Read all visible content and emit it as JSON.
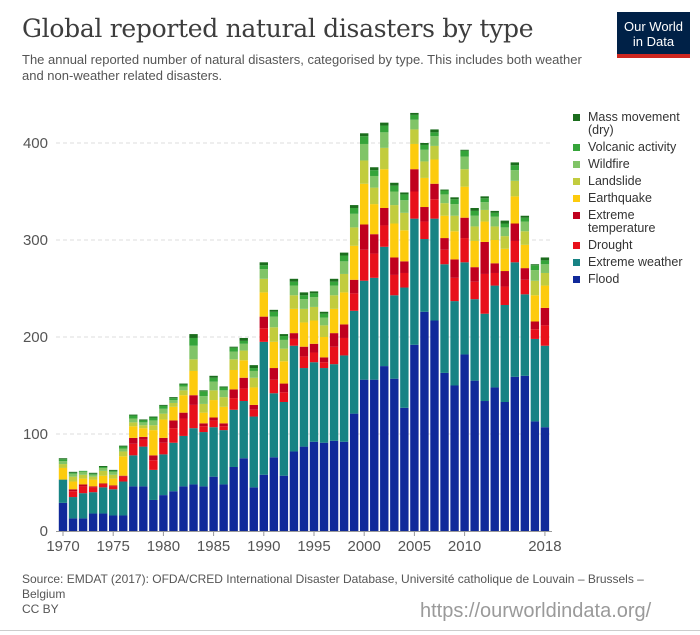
{
  "header": {
    "title": "Global reported natural disasters by type",
    "subtitle": "The annual reported number of natural disasters, categorised by type. This includes both weather and non-weather related disasters.",
    "logo_line1": "Our World",
    "logo_line2": "in Data"
  },
  "footer": {
    "source": "Source: EMDAT (2017): OFDA/CRED International Disaster Database, Université catholique de Louvain – Brussels – Belgium",
    "license": "CC BY",
    "watermark": "https://ourworldindata.org/"
  },
  "chart_data": {
    "type": "bar",
    "stacked": true,
    "title": "Global reported natural disasters by type",
    "xlabel": "",
    "ylabel": "",
    "ylim": [
      0,
      440
    ],
    "grid": true,
    "legend": "right",
    "yticks": [
      0,
      100,
      200,
      300,
      400
    ],
    "xticks": [
      "1970",
      "1975",
      "1980",
      "1985",
      "1990",
      "1995",
      "2000",
      "2005",
      "2010",
      "2018"
    ],
    "categories": [
      1970,
      1971,
      1972,
      1973,
      1974,
      1975,
      1976,
      1977,
      1978,
      1979,
      1980,
      1981,
      1982,
      1983,
      1984,
      1985,
      1986,
      1987,
      1988,
      1989,
      1990,
      1991,
      1992,
      1993,
      1994,
      1995,
      1996,
      1997,
      1998,
      1999,
      2000,
      2001,
      2002,
      2003,
      2004,
      2005,
      2006,
      2007,
      2008,
      2009,
      2010,
      2011,
      2012,
      2013,
      2014,
      2015,
      2016,
      2017,
      2018
    ],
    "series": [
      {
        "name": "Flood",
        "color": "#10299a",
        "values": [
          29,
          13,
          13,
          18,
          18,
          16,
          16,
          46,
          46,
          32,
          37,
          41,
          46,
          48,
          46,
          56,
          48,
          66,
          75,
          45,
          58,
          76,
          57,
          82,
          87,
          92,
          91,
          93,
          92,
          121,
          156,
          156,
          170,
          157,
          127,
          192,
          226,
          217,
          163,
          150,
          182,
          155,
          134,
          148,
          133,
          159,
          160,
          113,
          107
        ]
      },
      {
        "name": "Extreme weather",
        "color": "#178384",
        "values": [
          24,
          22,
          26,
          22,
          27,
          27,
          35,
          32,
          41,
          31,
          42,
          50,
          52,
          58,
          56,
          51,
          56,
          59,
          59,
          73,
          137,
          66,
          76,
          109,
          81,
          82,
          77,
          79,
          89,
          106,
          102,
          105,
          123,
          86,
          124,
          130,
          75,
          105,
          112,
          87,
          95,
          84,
          90,
          105,
          100,
          118,
          84,
          85,
          84
        ]
      },
      {
        "name": "Drought",
        "color": "#e8101a",
        "values": [
          0,
          6,
          7,
          5,
          3,
          3,
          5,
          12,
          7,
          10,
          12,
          15,
          18,
          24,
          6,
          7,
          4,
          12,
          13,
          7,
          14,
          14,
          10,
          7,
          12,
          10,
          6,
          18,
          18,
          18,
          32,
          25,
          22,
          21,
          15,
          28,
          18,
          20,
          15,
          24,
          25,
          18,
          41,
          13,
          19,
          22,
          15,
          10,
          21
        ]
      },
      {
        "name": "Extreme temperature",
        "color": "#c0001e",
        "values": [
          0,
          2,
          2,
          1,
          1,
          1,
          1,
          6,
          3,
          5,
          5,
          8,
          6,
          10,
          3,
          3,
          3,
          9,
          11,
          5,
          12,
          12,
          9,
          6,
          10,
          9,
          5,
          14,
          14,
          14,
          26,
          20,
          18,
          18,
          12,
          23,
          15,
          16,
          12,
          19,
          21,
          15,
          33,
          10,
          16,
          18,
          12,
          8,
          18
        ]
      },
      {
        "name": "Earthquake",
        "color": "#fdcb0d",
        "values": [
          12,
          8,
          6,
          7,
          8,
          7,
          20,
          12,
          9,
          26,
          19,
          14,
          18,
          25,
          11,
          18,
          17,
          20,
          18,
          18,
          25,
          27,
          23,
          25,
          25,
          24,
          21,
          25,
          33,
          35,
          42,
          31,
          40,
          35,
          32,
          26,
          30,
          25,
          23,
          29,
          32,
          27,
          21,
          24,
          23,
          28,
          24,
          27,
          23
        ]
      },
      {
        "name": "Landslide",
        "color": "#c2cc3e",
        "values": [
          4,
          5,
          4,
          3,
          5,
          4,
          5,
          4,
          3,
          5,
          6,
          4,
          5,
          12,
          9,
          10,
          10,
          11,
          10,
          10,
          14,
          15,
          13,
          14,
          14,
          14,
          12,
          14,
          19,
          19,
          24,
          17,
          22,
          19,
          18,
          15,
          17,
          14,
          13,
          16,
          18,
          15,
          12,
          14,
          13,
          16,
          14,
          15,
          13
        ]
      },
      {
        "name": "Wildfire",
        "color": "#80c467",
        "values": [
          3,
          3,
          3,
          2,
          3,
          3,
          3,
          4,
          3,
          5,
          5,
          3,
          4,
          14,
          8,
          9,
          7,
          8,
          7,
          7,
          10,
          11,
          9,
          10,
          10,
          10,
          8,
          10,
          13,
          14,
          17,
          12,
          16,
          14,
          13,
          10,
          12,
          10,
          9,
          12,
          13,
          11,
          8,
          10,
          9,
          11,
          10,
          11,
          9
        ]
      },
      {
        "name": "Volcanic activity",
        "color": "#35a43a",
        "values": [
          2,
          1,
          1,
          1,
          1,
          1,
          2,
          3,
          2,
          3,
          3,
          2,
          2,
          8,
          5,
          4,
          3,
          4,
          3,
          3,
          4,
          5,
          4,
          4,
          4,
          4,
          4,
          4,
          6,
          6,
          8,
          6,
          7,
          6,
          6,
          5,
          5,
          4,
          4,
          5,
          6,
          5,
          4,
          4,
          4,
          5,
          4,
          5,
          4
        ]
      },
      {
        "name": "Mass movement (dry)",
        "color": "#1b6d1d",
        "values": [
          1,
          1,
          0,
          1,
          1,
          1,
          1,
          1,
          1,
          1,
          1,
          1,
          1,
          4,
          1,
          2,
          1,
          1,
          3,
          3,
          3,
          2,
          2,
          3,
          3,
          2,
          2,
          3,
          3,
          3,
          3,
          3,
          3,
          3,
          2,
          2,
          2,
          3,
          1,
          2,
          1,
          3,
          2,
          2,
          3,
          3,
          2,
          1,
          3
        ]
      }
    ]
  },
  "legend": {
    "items": [
      {
        "label": "Mass movement (dry)",
        "color": "#1b6d1d"
      },
      {
        "label": "Volcanic activity",
        "color": "#35a43a"
      },
      {
        "label": "Wildfire",
        "color": "#80c467"
      },
      {
        "label": "Landslide",
        "color": "#c2cc3e"
      },
      {
        "label": "Earthquake",
        "color": "#fdcb0d"
      },
      {
        "label": "Extreme temperature",
        "color": "#c0001e"
      },
      {
        "label": "Drought",
        "color": "#e8101a"
      },
      {
        "label": "Extreme weather",
        "color": "#178384"
      },
      {
        "label": "Flood",
        "color": "#10299a"
      }
    ]
  }
}
